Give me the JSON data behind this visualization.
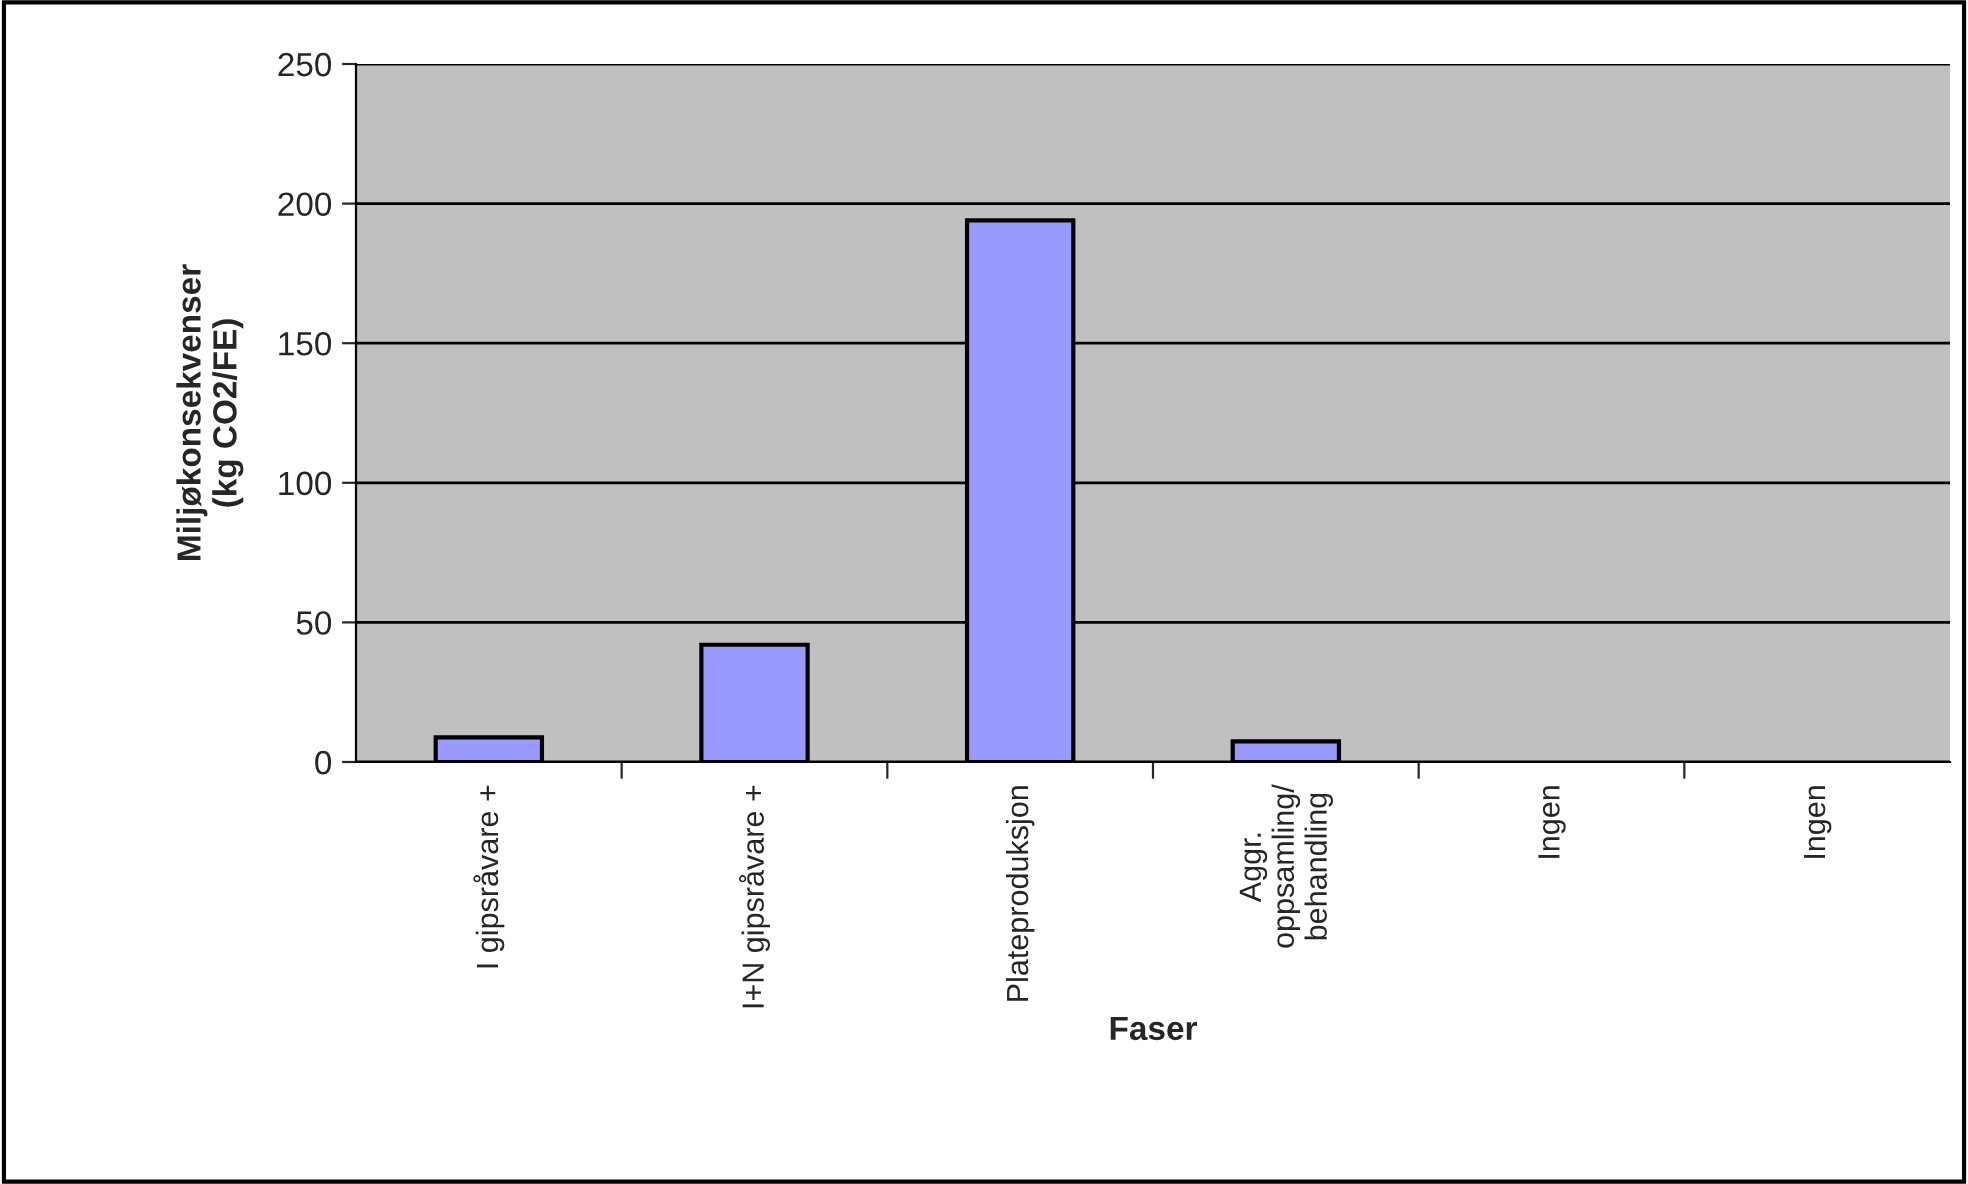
{
  "chart_data": {
    "type": "bar",
    "categories": [
      "I gipsråvare +",
      "I+N gipsråvare +",
      "Plateproduksjon",
      "Aggr.\noppsamling/\nbehandling",
      "Ingen",
      "Ingen"
    ],
    "values": [
      8.8,
      42,
      194,
      7.4,
      0,
      0
    ],
    "color": "#9999ff",
    "xlabel": "Faser",
    "ylabel": "Miljøkonsekvenser\n(kg CO2/FE)",
    "ylim": [
      0,
      250
    ],
    "yticks": [
      0,
      50,
      100,
      150,
      200,
      250
    ],
    "grid": "y",
    "legend": false
  }
}
